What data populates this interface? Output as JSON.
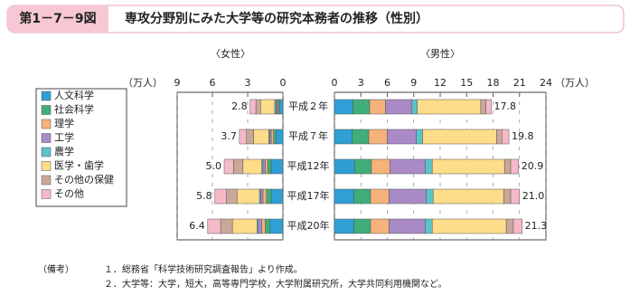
{
  "header": {
    "figure_no": "第1－7－9図",
    "title": "専攻分野別にみた大学等の研究本務者の推移（性別）"
  },
  "chart_data": {
    "type": "bar",
    "orientation": "horizontal",
    "stacked": true,
    "categories": [
      "平成２年",
      "平成７年",
      "平成12年",
      "平成17年",
      "平成20年"
    ],
    "series": [
      {
        "name": "人文科学",
        "color": "#2f9fd6"
      },
      {
        "name": "社会科学",
        "color": "#3fae7a"
      },
      {
        "name": "理学",
        "color": "#f5b27a"
      },
      {
        "name": "工学",
        "color": "#a98ac7"
      },
      {
        "name": "農学",
        "color": "#5bc4c9"
      },
      {
        "name": "医学・歯学",
        "color": "#fddc8a"
      },
      {
        "name": "その他の保健",
        "color": "#c9a89a"
      },
      {
        "name": "その他",
        "color": "#f5b9c8"
      }
    ],
    "panels": [
      {
        "title": "〈女性〉",
        "unit": "（万人）",
        "xlim": [
          9,
          0
        ],
        "xticks": [
          9,
          6,
          3,
          0
        ],
        "values": [
          [
            0.3,
            0.1,
            0.1,
            0.1,
            0.1,
            1.2,
            0.4,
            0.5
          ],
          [
            0.6,
            0.2,
            0.2,
            0.1,
            0.1,
            1.3,
            0.6,
            0.6
          ],
          [
            1.0,
            0.3,
            0.2,
            0.2,
            0.1,
            1.6,
            0.8,
            0.8
          ],
          [
            1.0,
            0.4,
            0.3,
            0.2,
            0.1,
            1.9,
            0.9,
            1.0
          ],
          [
            1.1,
            0.4,
            0.3,
            0.3,
            0.1,
            2.1,
            1.0,
            1.1
          ]
        ],
        "totals": [
          2.8,
          3.7,
          5.0,
          5.8,
          6.4
        ],
        "total_labels": [
          "2.8",
          "3.7",
          "5.0",
          "5.8",
          "6.4"
        ]
      },
      {
        "title": "〈男性〉",
        "unit": "（万人）",
        "xlim": [
          0,
          24
        ],
        "xticks": [
          0,
          3,
          6,
          9,
          12,
          15,
          18,
          21,
          24
        ],
        "values": [
          [
            2.1,
            1.9,
            1.8,
            3.0,
            0.6,
            7.2,
            0.6,
            0.6
          ],
          [
            2.0,
            1.9,
            2.1,
            3.3,
            0.7,
            8.4,
            0.6,
            0.8
          ],
          [
            2.3,
            1.9,
            2.1,
            4.0,
            0.8,
            8.2,
            0.7,
            0.9
          ],
          [
            2.2,
            1.9,
            2.1,
            4.2,
            0.8,
            8.0,
            0.8,
            1.0
          ],
          [
            2.2,
            1.9,
            2.1,
            4.1,
            0.8,
            8.4,
            0.8,
            1.0
          ]
        ],
        "totals": [
          17.8,
          19.8,
          20.9,
          21.0,
          21.3
        ],
        "total_labels": [
          "17.8",
          "19.8",
          "20.9",
          "21.0",
          "21.3"
        ]
      }
    ]
  },
  "notes": {
    "label": "（備考）",
    "items": [
      "１．総務省「科学技術研究調査報告」より作成。",
      "２．大学等：大学，短大，高等専門学校，大学附属研究所，大学共同利用機関など。"
    ]
  }
}
